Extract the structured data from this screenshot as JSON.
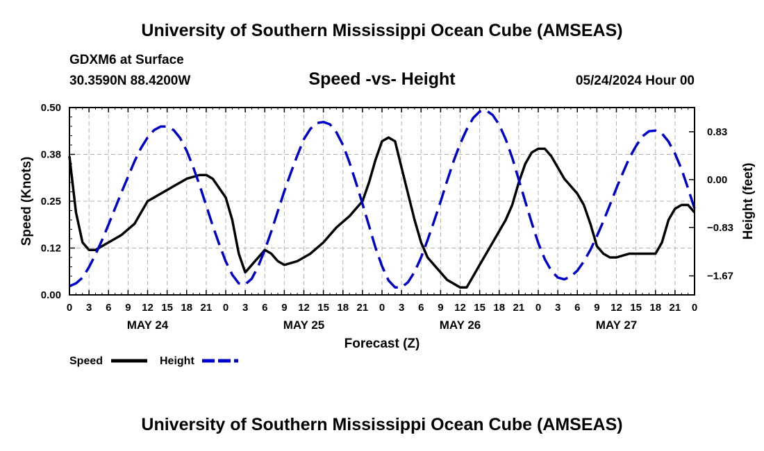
{
  "header": {
    "title": "University of Southern Mississippi Ocean Cube (AMSEAS)",
    "station": "GDXM6 at Surface",
    "coords": "30.3590N  88.4200W",
    "subtitle": "Speed -vs- Height",
    "datetime": "05/24/2024 Hour 00"
  },
  "footer": {
    "title": "University of Southern Mississippi Ocean Cube (AMSEAS)"
  },
  "chart_data": {
    "type": "line",
    "title": "Speed -vs- Height",
    "xlabel": "Forecast (Z)",
    "ylabel": "Speed (Knots)",
    "y2label": "Height (feet)",
    "xlim": [
      0,
      96
    ],
    "ylim": [
      0,
      0.5
    ],
    "y2lim": [
      -2.0,
      1.25
    ],
    "grid": true,
    "x_tick_labels": [
      "0",
      "3",
      "6",
      "9",
      "12",
      "15",
      "18",
      "21",
      "0",
      "3",
      "6",
      "9",
      "12",
      "15",
      "18",
      "21",
      "0",
      "3",
      "6",
      "9",
      "12",
      "15",
      "18",
      "21",
      "0",
      "3",
      "6",
      "9",
      "12",
      "15",
      "18",
      "21",
      "0"
    ],
    "day_labels": [
      {
        "x": 12,
        "label": "MAY 24"
      },
      {
        "x": 36,
        "label": "MAY 25"
      },
      {
        "x": 60,
        "label": "MAY 26"
      },
      {
        "x": 84,
        "label": "MAY 27"
      }
    ],
    "y_ticks": [
      {
        "value": 0,
        "label": "0.00"
      },
      {
        "value": 0.125,
        "label": "0.12"
      },
      {
        "value": 0.25,
        "label": "0.25"
      },
      {
        "value": 0.375,
        "label": "0.38"
      },
      {
        "value": 0.5,
        "label": "0.50"
      }
    ],
    "y2_ticks": [
      {
        "value": 0.83,
        "label": "0.83"
      },
      {
        "value": 0.0,
        "label": "0.00"
      },
      {
        "value": -0.83,
        "label": "−0.83"
      },
      {
        "value": -1.67,
        "label": "−1.67"
      }
    ],
    "legend": [
      {
        "name": "Speed",
        "color": "#000000",
        "dash": "solid"
      },
      {
        "name": "Height",
        "color": "#0000cc",
        "dash": "dashed"
      }
    ],
    "series": [
      {
        "name": "Speed",
        "axis": "left",
        "color": "#000000",
        "x": [
          0,
          1,
          2,
          3,
          4,
          5,
          6,
          8,
          10,
          12,
          14,
          16,
          18,
          20,
          21,
          22,
          24,
          25,
          26,
          27,
          28,
          29,
          30,
          31,
          32,
          33,
          35,
          37,
          39,
          41,
          43,
          45,
          46,
          47,
          48,
          49,
          50,
          51,
          52,
          53,
          54,
          55,
          56,
          57,
          58,
          59,
          60,
          61,
          62,
          63,
          65,
          67,
          68,
          69,
          70,
          71,
          72,
          73,
          74,
          75,
          76,
          77,
          78,
          79,
          80,
          81,
          82,
          83,
          84,
          86,
          87,
          88,
          89,
          90,
          91,
          92,
          93,
          94,
          95,
          96
        ],
        "values": [
          0.37,
          0.22,
          0.14,
          0.12,
          0.12,
          0.13,
          0.14,
          0.16,
          0.19,
          0.25,
          0.27,
          0.29,
          0.31,
          0.32,
          0.32,
          0.31,
          0.26,
          0.2,
          0.11,
          0.06,
          0.08,
          0.1,
          0.12,
          0.11,
          0.09,
          0.08,
          0.09,
          0.11,
          0.14,
          0.18,
          0.21,
          0.25,
          0.3,
          0.36,
          0.41,
          0.42,
          0.41,
          0.34,
          0.27,
          0.2,
          0.14,
          0.1,
          0.08,
          0.06,
          0.04,
          0.03,
          0.02,
          0.02,
          0.05,
          0.08,
          0.14,
          0.2,
          0.24,
          0.3,
          0.35,
          0.38,
          0.39,
          0.39,
          0.37,
          0.34,
          0.31,
          0.29,
          0.27,
          0.24,
          0.19,
          0.13,
          0.11,
          0.1,
          0.1,
          0.11,
          0.11,
          0.11,
          0.11,
          0.11,
          0.14,
          0.2,
          0.23,
          0.24,
          0.24,
          0.22
        ]
      },
      {
        "name": "Height",
        "axis": "right",
        "color": "#0000cc",
        "x": [
          0,
          1,
          2,
          3,
          4,
          5,
          6,
          7,
          8,
          9,
          10,
          11,
          12,
          13,
          14,
          15,
          16,
          17,
          18,
          19,
          20,
          21,
          22,
          23,
          24,
          25,
          26,
          27,
          28,
          29,
          30,
          31,
          32,
          33,
          34,
          35,
          36,
          37,
          38,
          39,
          40,
          41,
          42,
          43,
          44,
          45,
          46,
          47,
          48,
          49,
          50,
          51,
          52,
          53,
          54,
          55,
          56,
          57,
          58,
          59,
          60,
          61,
          62,
          63,
          64,
          65,
          66,
          67,
          68,
          69,
          70,
          71,
          72,
          73,
          74,
          75,
          76,
          77,
          78,
          79,
          80,
          81,
          82,
          83,
          84,
          85,
          86,
          87,
          88,
          89,
          90,
          91,
          92,
          93,
          94,
          95,
          96
        ],
        "values": [
          -1.85,
          -1.8,
          -1.7,
          -1.52,
          -1.3,
          -1.05,
          -0.78,
          -0.5,
          -0.22,
          0.05,
          0.32,
          0.55,
          0.73,
          0.86,
          0.92,
          0.92,
          0.86,
          0.72,
          0.5,
          0.22,
          -0.1,
          -0.45,
          -0.8,
          -1.12,
          -1.42,
          -1.65,
          -1.8,
          -1.82,
          -1.72,
          -1.5,
          -1.22,
          -0.9,
          -0.55,
          -0.2,
          0.12,
          0.42,
          0.7,
          0.88,
          0.98,
          1.0,
          0.96,
          0.82,
          0.6,
          0.3,
          -0.05,
          -0.42,
          -0.8,
          -1.18,
          -1.5,
          -1.75,
          -1.87,
          -1.87,
          -1.78,
          -1.6,
          -1.35,
          -1.05,
          -0.72,
          -0.38,
          -0.02,
          0.32,
          0.62,
          0.87,
          1.07,
          1.18,
          1.2,
          1.12,
          0.95,
          0.7,
          0.38,
          0.0,
          -0.38,
          -0.75,
          -1.1,
          -1.38,
          -1.58,
          -1.7,
          -1.73,
          -1.68,
          -1.58,
          -1.42,
          -1.22,
          -0.98,
          -0.72,
          -0.44,
          -0.15,
          0.12,
          0.38,
          0.58,
          0.75,
          0.84,
          0.85,
          0.8,
          0.66,
          0.45,
          0.18,
          -0.15,
          -0.5
        ]
      }
    ]
  }
}
